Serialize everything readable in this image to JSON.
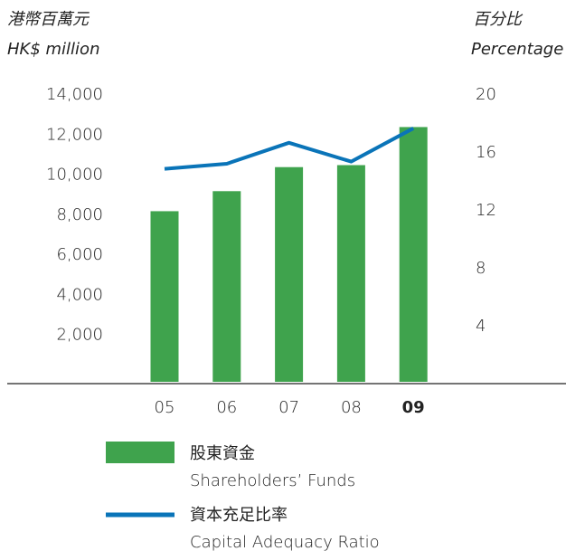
{
  "chart_data": {
    "type": "bar_line",
    "ylabel": [
      "港幣百萬元",
      "HK$ million"
    ],
    "y2label": [
      "百分比",
      "Percentage"
    ],
    "categories": [
      "05",
      "06",
      "07",
      "08",
      "09"
    ],
    "series": [
      {
        "name": [
          "股東資金",
          "Shareholders’ Funds"
        ],
        "type": "bar",
        "color": "#3fa34d",
        "values": [
          8200,
          9200,
          10400,
          10500,
          12400
        ]
      },
      {
        "name": [
          "資本充足比率",
          "Capital Adequacy Ratio"
        ],
        "type": "line",
        "axis": "y2",
        "color": "#0a74b8",
        "values": [
          14.9,
          15.25,
          16.7,
          15.4,
          17.7
        ]
      }
    ],
    "ylim": [
      0,
      14000
    ],
    "yticks": [
      {
        "value": 2000,
        "label": "2,000"
      },
      {
        "value": 4000,
        "label": "4,000"
      },
      {
        "value": 6000,
        "label": "6,000"
      },
      {
        "value": 8000,
        "label": "8,000"
      },
      {
        "value": 10000,
        "label": "10,000"
      },
      {
        "value": 12000,
        "label": "12,000"
      },
      {
        "value": 14000,
        "label": "14,000"
      }
    ],
    "y2lim": [
      0,
      20
    ],
    "y2ticks": [
      4,
      8,
      12,
      16,
      20
    ]
  }
}
